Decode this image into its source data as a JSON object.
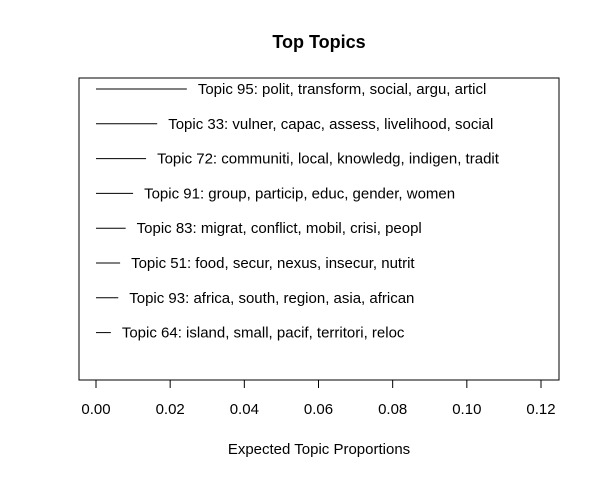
{
  "chart_data": {
    "type": "bar",
    "title": "Top Topics",
    "xlabel": "Expected Topic Proportions",
    "ylabel": "",
    "xlim": [
      0.0,
      0.12
    ],
    "x_ticks": [
      0.0,
      0.02,
      0.04,
      0.06,
      0.08,
      0.1,
      0.12
    ],
    "x_tick_labels": [
      "0.00",
      "0.02",
      "0.04",
      "0.06",
      "0.08",
      "0.10",
      "0.12"
    ],
    "grid": false,
    "orientation": "horizontal",
    "categories": [
      "Topic 95: polit, transform, social, argu, articl",
      "Topic 33: vulner, capac, assess, livelihood, social",
      "Topic 72: communiti, local, knowledg, indigen, tradit",
      "Topic 91: group, particip, educ, gender, women",
      "Topic 83: migrat, conflict, mobil, crisi, peopl",
      "Topic 51: food, secur, nexus, insecur, nutrit",
      "Topic 93: africa, south, region, asia, african",
      "Topic 64: island, small, pacif, territori, reloc"
    ],
    "values": [
      0.0245,
      0.0165,
      0.0135,
      0.01,
      0.008,
      0.0065,
      0.006,
      0.004
    ]
  }
}
